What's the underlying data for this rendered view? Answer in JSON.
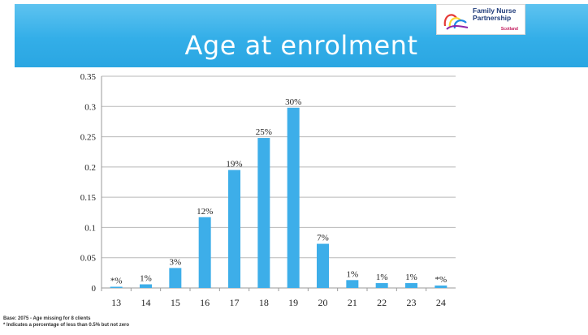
{
  "header": {
    "title": "Age at enrolment"
  },
  "logo": {
    "text_line1": "Family Nurse",
    "text_line2": "Partnership",
    "subtext": "Scotland"
  },
  "footnotes": {
    "base": "Base:  2075 -  Age missing for 8 clients",
    "asterisk": "* Indicates a percentage of less than 0.5% but not zero"
  },
  "colors": {
    "bar": "#3daee9",
    "banner": "#33aee8",
    "grid": "#b8b8b8"
  },
  "chart_data": {
    "type": "bar",
    "categories": [
      "13",
      "14",
      "15",
      "16",
      "17",
      "18",
      "19",
      "20",
      "21",
      "22",
      "23",
      "24"
    ],
    "values": [
      0.002,
      0.006,
      0.033,
      0.117,
      0.195,
      0.248,
      0.298,
      0.073,
      0.013,
      0.008,
      0.008,
      0.004
    ],
    "data_labels": [
      "*%",
      "1%",
      "3%",
      "12%",
      "19%",
      "25%",
      "30%",
      "7%",
      "1%",
      "1%",
      "1%",
      "*%"
    ],
    "y_ticks": [
      "0",
      "0.05",
      "0.1",
      "0.15",
      "0.2",
      "0.25",
      "0.3",
      "0.35"
    ],
    "ylim": [
      0,
      0.35
    ],
    "grid": true,
    "legend": "none",
    "title": "",
    "xlabel": "",
    "ylabel": ""
  }
}
